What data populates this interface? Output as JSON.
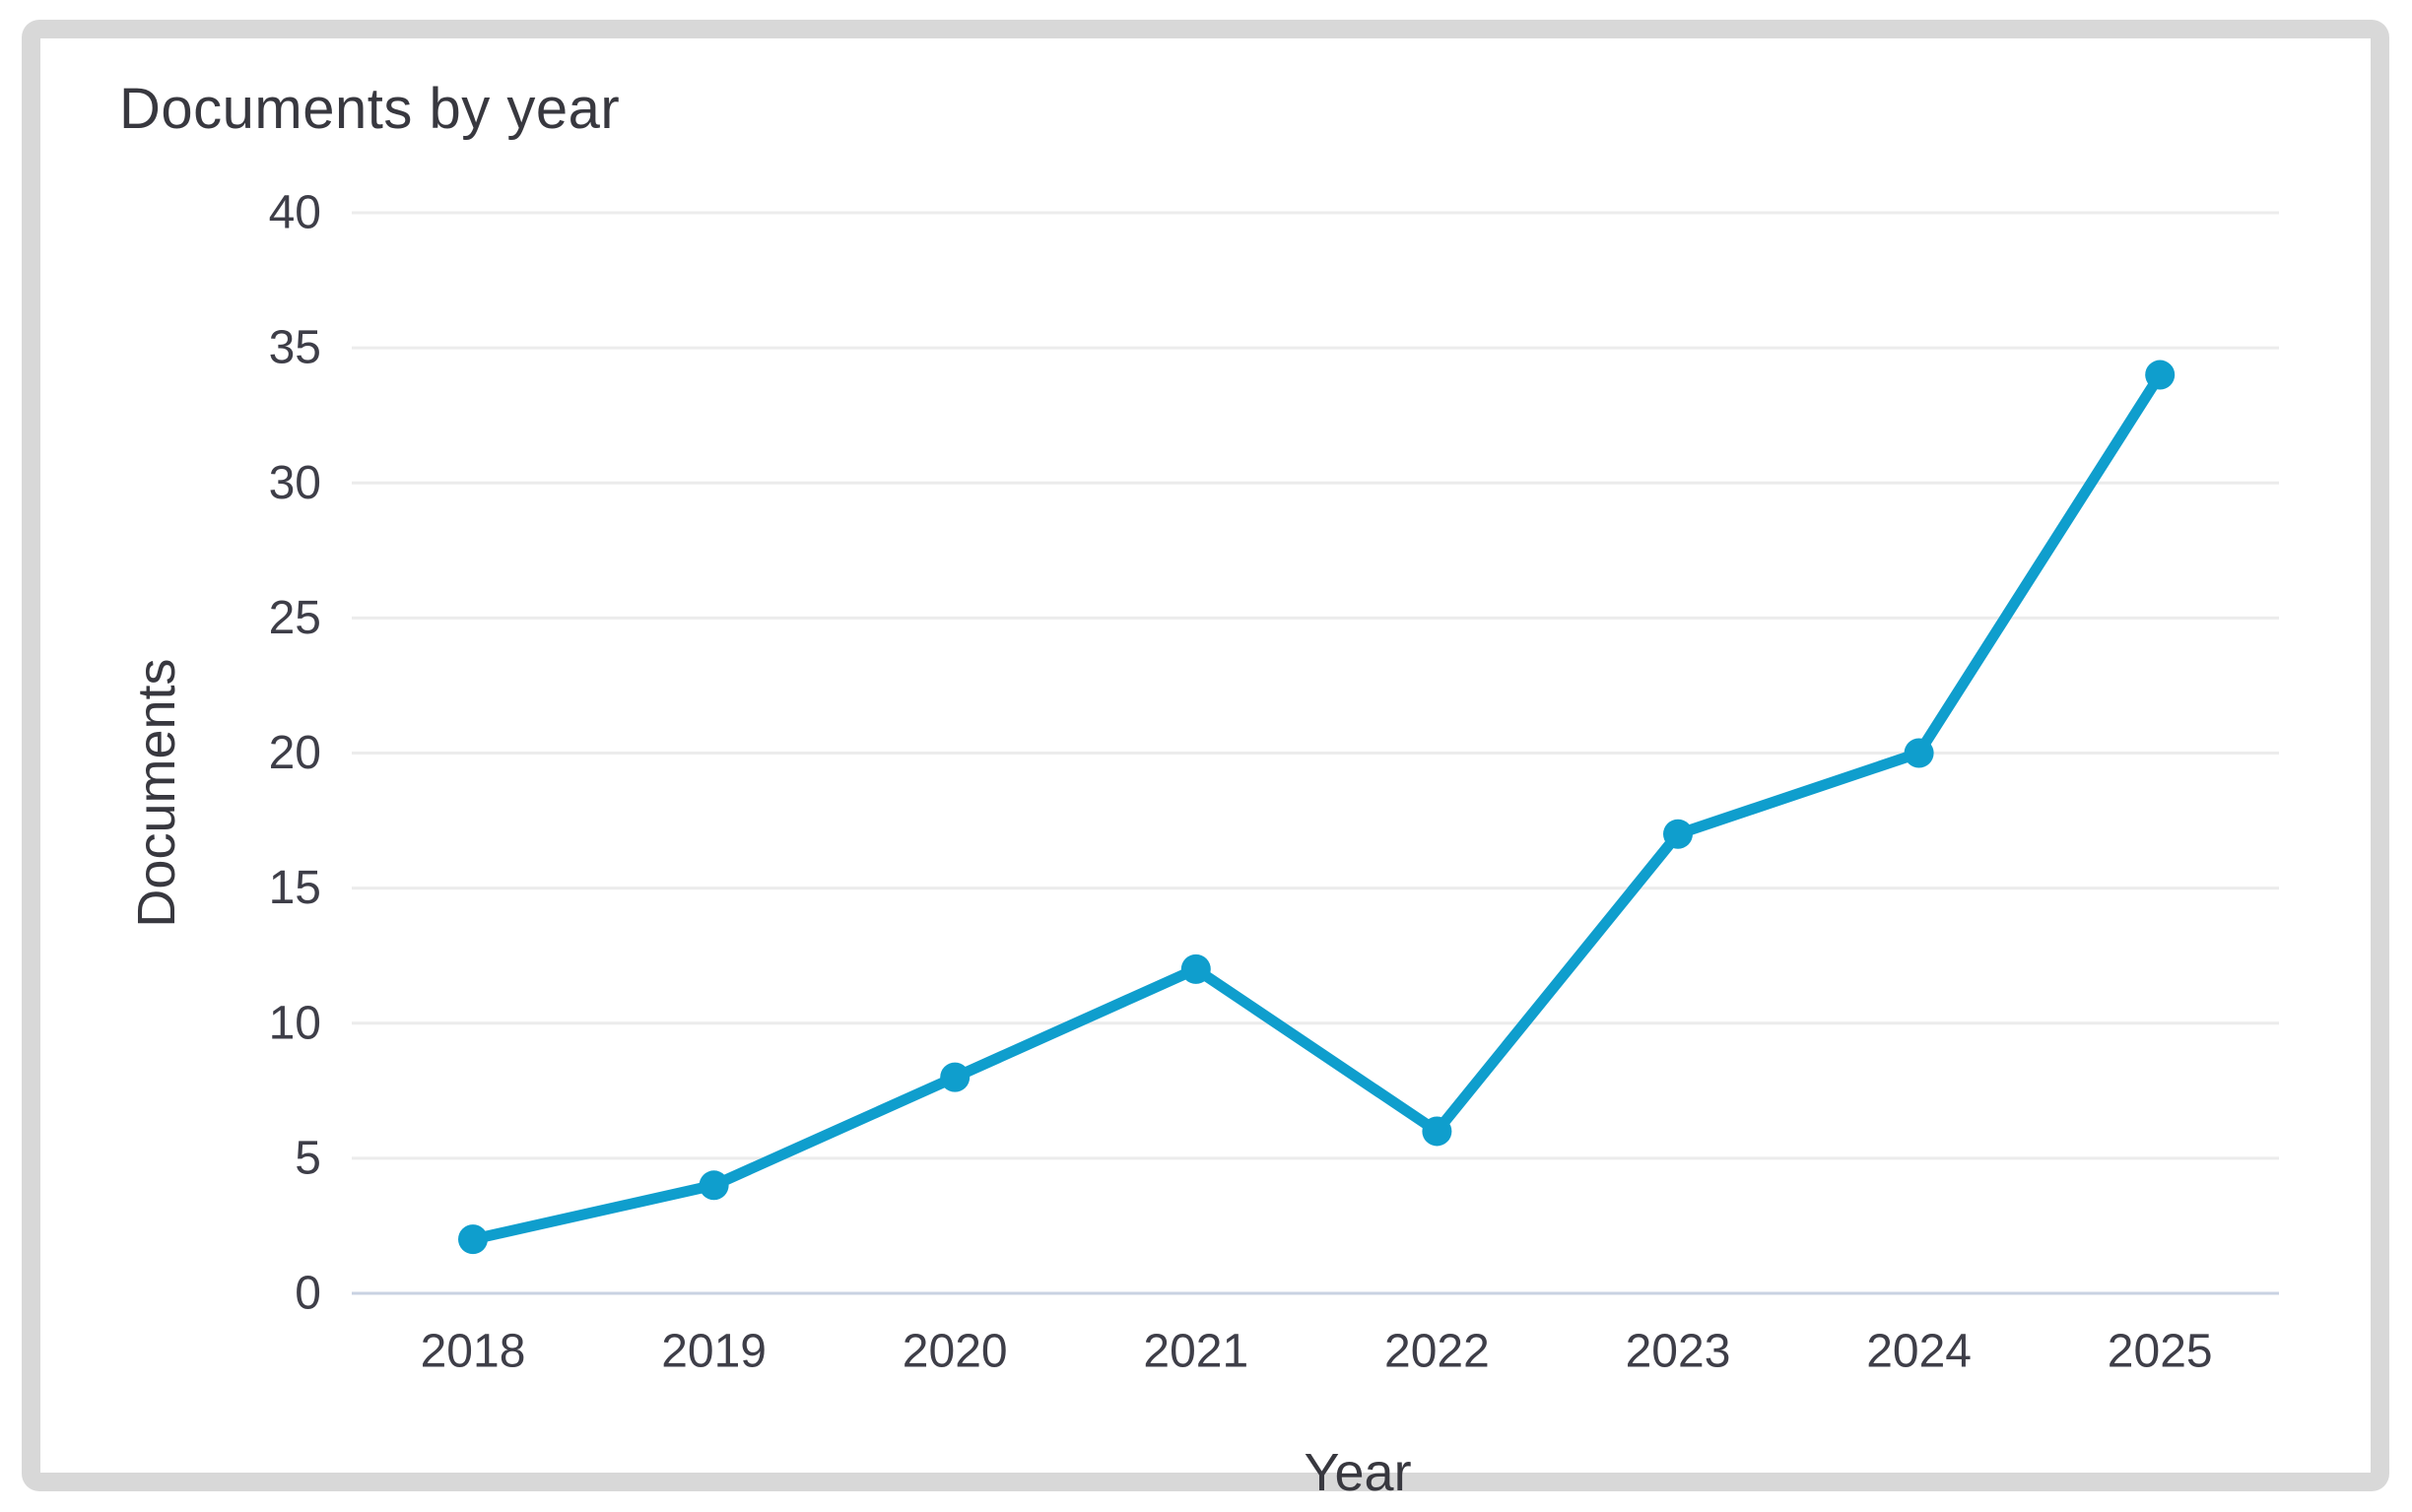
{
  "card": {
    "border_color": "#d8d8d8",
    "background": "#ffffff"
  },
  "chart_data": {
    "type": "line",
    "title": "Documents by year",
    "xlabel": "Year",
    "ylabel": "Documents",
    "categories": [
      "2018",
      "2019",
      "2020",
      "2021",
      "2022",
      "2023",
      "2024",
      "2025"
    ],
    "series": [
      {
        "name": "Documents",
        "values": [
          2,
          4,
          8,
          12,
          6,
          17,
          20,
          34
        ]
      }
    ],
    "ylim": [
      0,
      40
    ],
    "yticks": [
      0,
      5,
      10,
      15,
      20,
      25,
      30,
      35,
      40
    ],
    "grid": true,
    "legend": false,
    "line_color": "#0f9ecd",
    "marker": "circle",
    "grid_color": "#ececec",
    "axis_line_color": "#c9d2e2",
    "tick_label_color": "#3e3e48",
    "title_color": "#38383f"
  }
}
